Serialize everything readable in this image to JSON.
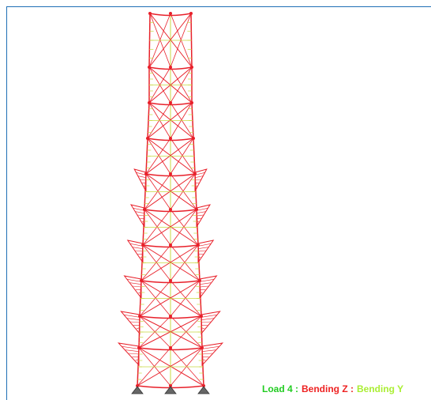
{
  "status_legend": {
    "load": "Load 4 :",
    "bending_z": "Bending Z :",
    "bending_y": "Bending Y"
  }
}
